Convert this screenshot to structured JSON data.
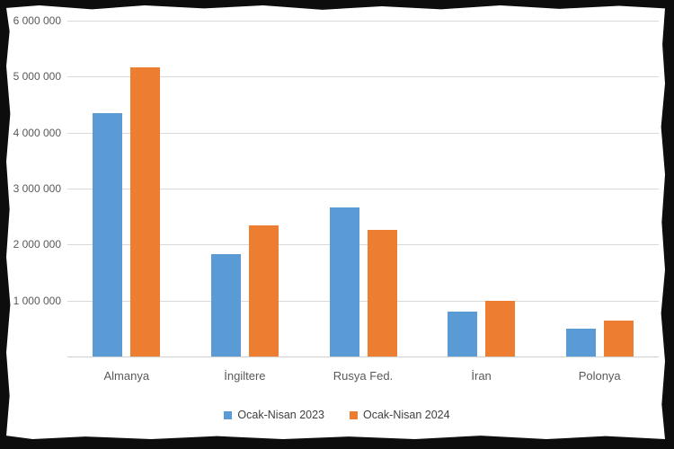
{
  "chart_data": {
    "type": "bar",
    "title": "",
    "xlabel": "",
    "ylabel": "",
    "categories": [
      "Almanya",
      "İngiltere",
      "Rusya Fed.",
      "İran",
      "Polonya"
    ],
    "series": [
      {
        "name": "Ocak-Nisan 2023",
        "color": "#5B9BD5",
        "values": [
          4350000,
          1830000,
          2660000,
          800000,
          500000
        ]
      },
      {
        "name": "Ocak-Nisan 2024",
        "color": "#ED7D31",
        "values": [
          5170000,
          2340000,
          2260000,
          1000000,
          640000
        ]
      }
    ],
    "ylim": [
      0,
      6000000
    ],
    "yticks": [
      1000000,
      2000000,
      3000000,
      4000000,
      5000000,
      6000000
    ],
    "ytick_labels": [
      "1 000 000",
      "2 000 000",
      "3 000 000",
      "4 000 000",
      "5 000 000",
      "6 000 000"
    ],
    "grid": true,
    "legend_position": "bottom"
  },
  "style": {
    "frame_color": "#0d0d0d",
    "background_color": "#ffffff",
    "gridline_color": "#d9d9d9",
    "axis_line_color": "#d0d0d0",
    "tick_text_color": "#595959",
    "category_text_color": "#595959",
    "legend_text_color": "#3f3f3f"
  }
}
